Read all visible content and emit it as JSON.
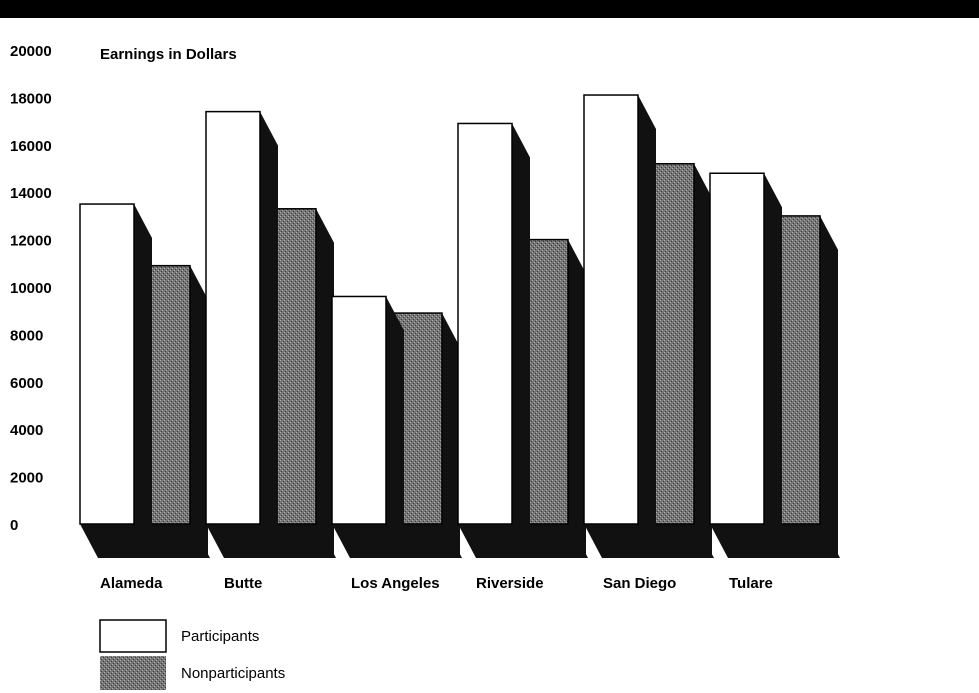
{
  "chart_data": {
    "type": "bar",
    "title": "Earnings in Dollars",
    "xlabel": "",
    "ylabel": "",
    "ylim": [
      0,
      20000
    ],
    "yticks": [
      0,
      2000,
      4000,
      6000,
      8000,
      10000,
      12000,
      14000,
      16000,
      18000,
      20000
    ],
    "categories": [
      "Alameda",
      "Butte",
      "Los Angeles",
      "Riverside",
      "San Diego",
      "Tulare"
    ],
    "series": [
      {
        "name": "Participants",
        "values": [
          13500,
          17400,
          9600,
          16900,
          18100,
          14800
        ]
      },
      {
        "name": "Nonparticipants",
        "values": [
          10900,
          13300,
          8900,
          12000,
          15200,
          13000
        ]
      }
    ],
    "legend_position": "bottom-left",
    "grid": false,
    "style": "3d"
  },
  "colors": {
    "participants_fill": "#ffffff",
    "nonparticipants_fill": "#6e6e6e",
    "shadow": "#111111",
    "top_banner": "#000000"
  }
}
